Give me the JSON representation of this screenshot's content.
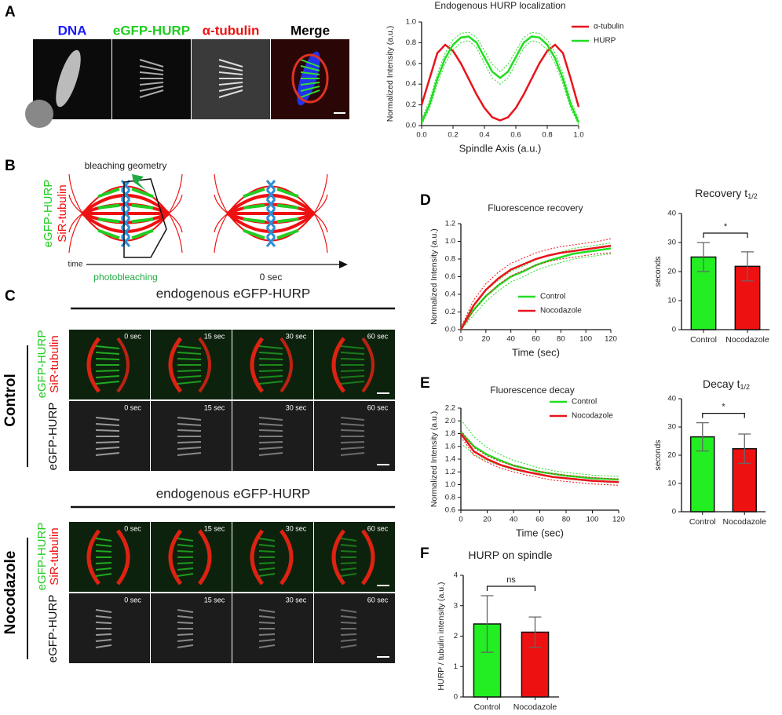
{
  "panels": {
    "A": {
      "letter": "A",
      "channels": [
        "DNA",
        "eGFP-HURP",
        "α-tubulin",
        "Merge"
      ]
    },
    "B": {
      "letter": "B",
      "labels": [
        "eGFP-HURP",
        "SiR-tubulin"
      ],
      "geometry": "bleaching geometry",
      "time": "time",
      "photobleaching": "photobleaching",
      "zero": "0 sec"
    },
    "C": {
      "letter": "C",
      "header": "endogenous eGFP-HURP",
      "conditions": [
        "Control",
        "Nocodazole"
      ],
      "merge_labels": [
        "eGFP-HURP",
        "SiR-tubulin"
      ],
      "gray_label": "eGFP-HURP",
      "timepoints": [
        "0 sec",
        "15 sec",
        "30 sec",
        "60 sec"
      ]
    },
    "D": {
      "letter": "D"
    },
    "E": {
      "letter": "E"
    },
    "F": {
      "letter": "F"
    }
  },
  "chart_data": [
    {
      "type": "line",
      "title": "Endogenous HURP localization",
      "xlabel": "Spindle Axis (a.u.)",
      "ylabel": "Normalized Intensity (a.u.)",
      "x": [
        0,
        0.05,
        0.1,
        0.15,
        0.2,
        0.25,
        0.3,
        0.35,
        0.4,
        0.45,
        0.5,
        0.55,
        0.6,
        0.65,
        0.7,
        0.75,
        0.8,
        0.85,
        0.9,
        0.95,
        1
      ],
      "xlim": [
        0,
        1
      ],
      "xticks": [
        {
          "value": 0,
          "label": "0.0"
        },
        0.2,
        0.4,
        0.6,
        0.8,
        {
          "value": 1,
          "label": "1.0"
        }
      ],
      "ylim": [
        0,
        1
      ],
      "yticks": [
        {
          "value": 0,
          "label": "0.0"
        },
        0.2,
        0.4,
        0.6,
        0.8,
        {
          "value": 1,
          "label": "1.0"
        }
      ],
      "grid": false,
      "legend": "upper right",
      "series": [
        {
          "name": "α-tubulin",
          "color": "#e8141c",
          "values": [
            0.2,
            0.45,
            0.7,
            0.78,
            0.72,
            0.6,
            0.45,
            0.3,
            0.17,
            0.08,
            0.05,
            0.08,
            0.17,
            0.3,
            0.45,
            0.6,
            0.72,
            0.78,
            0.7,
            0.45,
            0.18
          ]
        },
        {
          "name": "HURP",
          "color": "#22dd22",
          "values": [
            0.03,
            0.2,
            0.45,
            0.65,
            0.78,
            0.85,
            0.86,
            0.8,
            0.66,
            0.52,
            0.46,
            0.52,
            0.66,
            0.8,
            0.86,
            0.85,
            0.78,
            0.65,
            0.45,
            0.2,
            0.03
          ],
          "upper": [
            0.06,
            0.24,
            0.5,
            0.7,
            0.83,
            0.89,
            0.9,
            0.85,
            0.72,
            0.59,
            0.52,
            0.59,
            0.72,
            0.85,
            0.9,
            0.89,
            0.83,
            0.7,
            0.5,
            0.24,
            0.06
          ],
          "lower": [
            0.01,
            0.16,
            0.4,
            0.6,
            0.73,
            0.8,
            0.82,
            0.75,
            0.6,
            0.46,
            0.4,
            0.46,
            0.6,
            0.75,
            0.82,
            0.8,
            0.73,
            0.6,
            0.4,
            0.16,
            0.01
          ]
        }
      ]
    },
    {
      "type": "line",
      "title": "Fluorescence recovery",
      "xlabel": "Time (sec)",
      "ylabel": "Normalized Intensity (a.u.)",
      "x": [
        0,
        10,
        20,
        30,
        40,
        50,
        60,
        70,
        80,
        90,
        100,
        110,
        120
      ],
      "xlim": [
        0,
        120
      ],
      "xticks": [
        0,
        20,
        40,
        60,
        80,
        100,
        120
      ],
      "ylim": [
        0,
        1.2
      ],
      "yticks": [
        {
          "value": 0,
          "label": "0.0"
        },
        0.2,
        0.4,
        0.6,
        0.8,
        {
          "value": 1,
          "label": "1.0"
        },
        1.2
      ],
      "grid": false,
      "legend": "lower right",
      "series": [
        {
          "name": "Control",
          "color": "#22dd22",
          "values": [
            0,
            0.22,
            0.38,
            0.5,
            0.6,
            0.66,
            0.73,
            0.78,
            0.82,
            0.86,
            0.88,
            0.9,
            0.92
          ],
          "upper": [
            0.02,
            0.28,
            0.44,
            0.56,
            0.66,
            0.72,
            0.79,
            0.84,
            0.88,
            0.92,
            0.94,
            0.96,
            0.98
          ],
          "lower": [
            0,
            0.16,
            0.32,
            0.44,
            0.54,
            0.6,
            0.67,
            0.72,
            0.76,
            0.8,
            0.82,
            0.84,
            0.86
          ]
        },
        {
          "name": "Nocodazole",
          "color": "#e8141c",
          "values": [
            0,
            0.27,
            0.45,
            0.58,
            0.68,
            0.74,
            0.8,
            0.84,
            0.87,
            0.89,
            0.91,
            0.93,
            0.95
          ],
          "upper": [
            0.02,
            0.33,
            0.52,
            0.65,
            0.75,
            0.81,
            0.87,
            0.91,
            0.94,
            0.96,
            0.98,
            1.0,
            1.03
          ],
          "lower": [
            0,
            0.21,
            0.38,
            0.51,
            0.61,
            0.67,
            0.73,
            0.77,
            0.8,
            0.82,
            0.84,
            0.86,
            0.87
          ]
        }
      ]
    },
    {
      "type": "bar",
      "title": "Recovery t",
      "title_subscript": "1/2",
      "ylabel": "seconds",
      "categories": [
        "Control",
        "Nocodazole"
      ],
      "values": [
        25,
        21.8
      ],
      "errors": [
        5,
        5
      ],
      "colors": [
        "#22ee22",
        "#ee1111"
      ],
      "ylim": [
        0,
        40
      ],
      "yticks": [
        0,
        10,
        20,
        30,
        40
      ],
      "grid": false,
      "significance": "*"
    },
    {
      "type": "line",
      "title": "Fluorescence decay",
      "xlabel": "Time (sec)",
      "ylabel": "Normalized Intensity (a.u.)",
      "x": [
        0,
        10,
        20,
        30,
        40,
        50,
        60,
        70,
        80,
        90,
        100,
        110,
        120
      ],
      "xlim": [
        0,
        120
      ],
      "xticks": [
        0,
        20,
        40,
        60,
        80,
        100,
        120
      ],
      "ylim": [
        0.6,
        2.2
      ],
      "yticks": [
        0.6,
        0.8,
        {
          "value": 1,
          "label": "1.0"
        },
        1.2,
        1.4,
        1.6,
        1.8,
        {
          "value": 2,
          "label": "2.0"
        },
        2.2
      ],
      "grid": false,
      "legend": "upper right",
      "series": [
        {
          "name": "Control",
          "color": "#22dd22",
          "values": [
            1.82,
            1.6,
            1.47,
            1.38,
            1.3,
            1.25,
            1.2,
            1.17,
            1.14,
            1.12,
            1.1,
            1.09,
            1.08
          ],
          "upper": [
            2.02,
            1.75,
            1.58,
            1.47,
            1.38,
            1.32,
            1.26,
            1.22,
            1.19,
            1.17,
            1.15,
            1.14,
            1.13
          ],
          "lower": [
            1.65,
            1.47,
            1.37,
            1.3,
            1.23,
            1.19,
            1.15,
            1.12,
            1.09,
            1.07,
            1.05,
            1.04,
            1.03
          ]
        },
        {
          "name": "Nocodazole",
          "color": "#e8141c",
          "values": [
            1.8,
            1.52,
            1.4,
            1.31,
            1.25,
            1.2,
            1.16,
            1.12,
            1.1,
            1.08,
            1.06,
            1.05,
            1.04
          ],
          "upper": [
            1.85,
            1.58,
            1.45,
            1.36,
            1.3,
            1.25,
            1.21,
            1.17,
            1.15,
            1.13,
            1.11,
            1.1,
            1.09
          ],
          "lower": [
            1.75,
            1.46,
            1.35,
            1.26,
            1.2,
            1.15,
            1.11,
            1.07,
            1.05,
            1.03,
            1.01,
            1.0,
            0.99
          ]
        }
      ]
    },
    {
      "type": "bar",
      "title": "Decay t",
      "title_subscript": "1/2",
      "ylabel": "seconds",
      "categories": [
        "Control",
        "Nocodazole"
      ],
      "values": [
        26.5,
        22.3
      ],
      "errors": [
        5,
        5.2
      ],
      "colors": [
        "#22ee22",
        "#ee1111"
      ],
      "ylim": [
        0,
        40
      ],
      "yticks": [
        0,
        10,
        20,
        30,
        40
      ],
      "grid": false,
      "significance": "*"
    },
    {
      "type": "bar",
      "title": "HURP on spindle",
      "ylabel": "HURP / tubulin intensity (a.u.)",
      "categories": [
        "Control",
        "Nocodazole"
      ],
      "values": [
        2.4,
        2.13
      ],
      "errors": [
        0.93,
        0.5
      ],
      "colors": [
        "#22ee22",
        "#ee1111"
      ],
      "ylim": [
        0,
        4
      ],
      "yticks": [
        0,
        1,
        2,
        3,
        4
      ],
      "grid": false,
      "significance": "ns"
    }
  ]
}
